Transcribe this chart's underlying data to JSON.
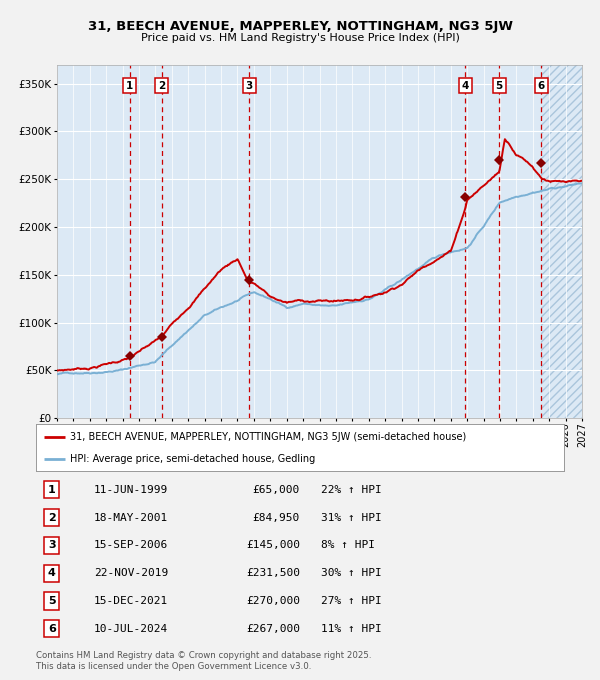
{
  "title": "31, BEECH AVENUE, MAPPERLEY, NOTTINGHAM, NG3 5JW",
  "subtitle": "Price paid vs. HM Land Registry's House Price Index (HPI)",
  "background_color": "#dce9f5",
  "grid_color": "#ffffff",
  "red_line_color": "#cc0000",
  "blue_line_color": "#7ab0d4",
  "sale_marker_color": "#880000",
  "dashed_line_color": "#cc0000",
  "sales": [
    {
      "num": 1,
      "date": "11-JUN-1999",
      "year": 1999.44,
      "price": 65000,
      "hpi_pct": "22% ↑ HPI"
    },
    {
      "num": 2,
      "date": "18-MAY-2001",
      "year": 2001.38,
      "price": 84950,
      "hpi_pct": "31% ↑ HPI"
    },
    {
      "num": 3,
      "date": "15-SEP-2006",
      "year": 2006.71,
      "price": 145000,
      "hpi_pct": "8% ↑ HPI"
    },
    {
      "num": 4,
      "date": "22-NOV-2019",
      "year": 2019.89,
      "price": 231500,
      "hpi_pct": "30% ↑ HPI"
    },
    {
      "num": 5,
      "date": "15-DEC-2021",
      "year": 2021.96,
      "price": 270000,
      "hpi_pct": "27% ↑ HPI"
    },
    {
      "num": 6,
      "date": "10-JUL-2024",
      "year": 2024.53,
      "price": 267000,
      "hpi_pct": "11% ↑ HPI"
    }
  ],
  "legend_line1": "31, BEECH AVENUE, MAPPERLEY, NOTTINGHAM, NG3 5JW (semi-detached house)",
  "legend_line2": "HPI: Average price, semi-detached house, Gedling",
  "footer1": "Contains HM Land Registry data © Crown copyright and database right 2025.",
  "footer2": "This data is licensed under the Open Government Licence v3.0.",
  "xmin": 1995.0,
  "xmax": 2027.0,
  "ymin": 0,
  "ymax": 370000,
  "yticks": [
    0,
    50000,
    100000,
    150000,
    200000,
    250000,
    300000,
    350000
  ],
  "hpi_anchors_x": [
    1995,
    1997,
    1999,
    2001,
    2003,
    2004,
    2007,
    2008,
    2009,
    2010,
    2011,
    2012,
    2013,
    2014,
    2015,
    2016,
    2017,
    2018,
    2019,
    2020,
    2021,
    2022,
    2023,
    2024,
    2025,
    2026,
    2027
  ],
  "hpi_anchors_y": [
    46000,
    49000,
    53000,
    62000,
    95000,
    110000,
    132000,
    125000,
    116000,
    121000,
    119000,
    117000,
    120000,
    124000,
    133000,
    143000,
    155000,
    165000,
    172000,
    177000,
    200000,
    225000,
    232000,
    238000,
    242000,
    245000,
    248000
  ],
  "prop_anchors_x": [
    1995,
    1997,
    1999.44,
    2001.38,
    2003,
    2004,
    2005,
    2006,
    2006.71,
    2007.0,
    2007.5,
    2008,
    2009,
    2010,
    2011,
    2012,
    2013,
    2014,
    2015,
    2016,
    2017,
    2018,
    2019,
    2019.89,
    2020,
    2021,
    2021.96,
    2022.3,
    2022.6,
    2023,
    2023.5,
    2024,
    2024.53,
    2025,
    2026,
    2027
  ],
  "prop_anchors_y": [
    50000,
    54000,
    65000,
    84950,
    118000,
    138000,
    158000,
    170000,
    145000,
    145000,
    138000,
    130000,
    124000,
    126000,
    126000,
    126000,
    128000,
    132000,
    138000,
    148000,
    162000,
    175000,
    185000,
    231500,
    240000,
    255000,
    270000,
    305000,
    300000,
    290000,
    285000,
    278000,
    267000,
    265000,
    262000,
    260000
  ]
}
